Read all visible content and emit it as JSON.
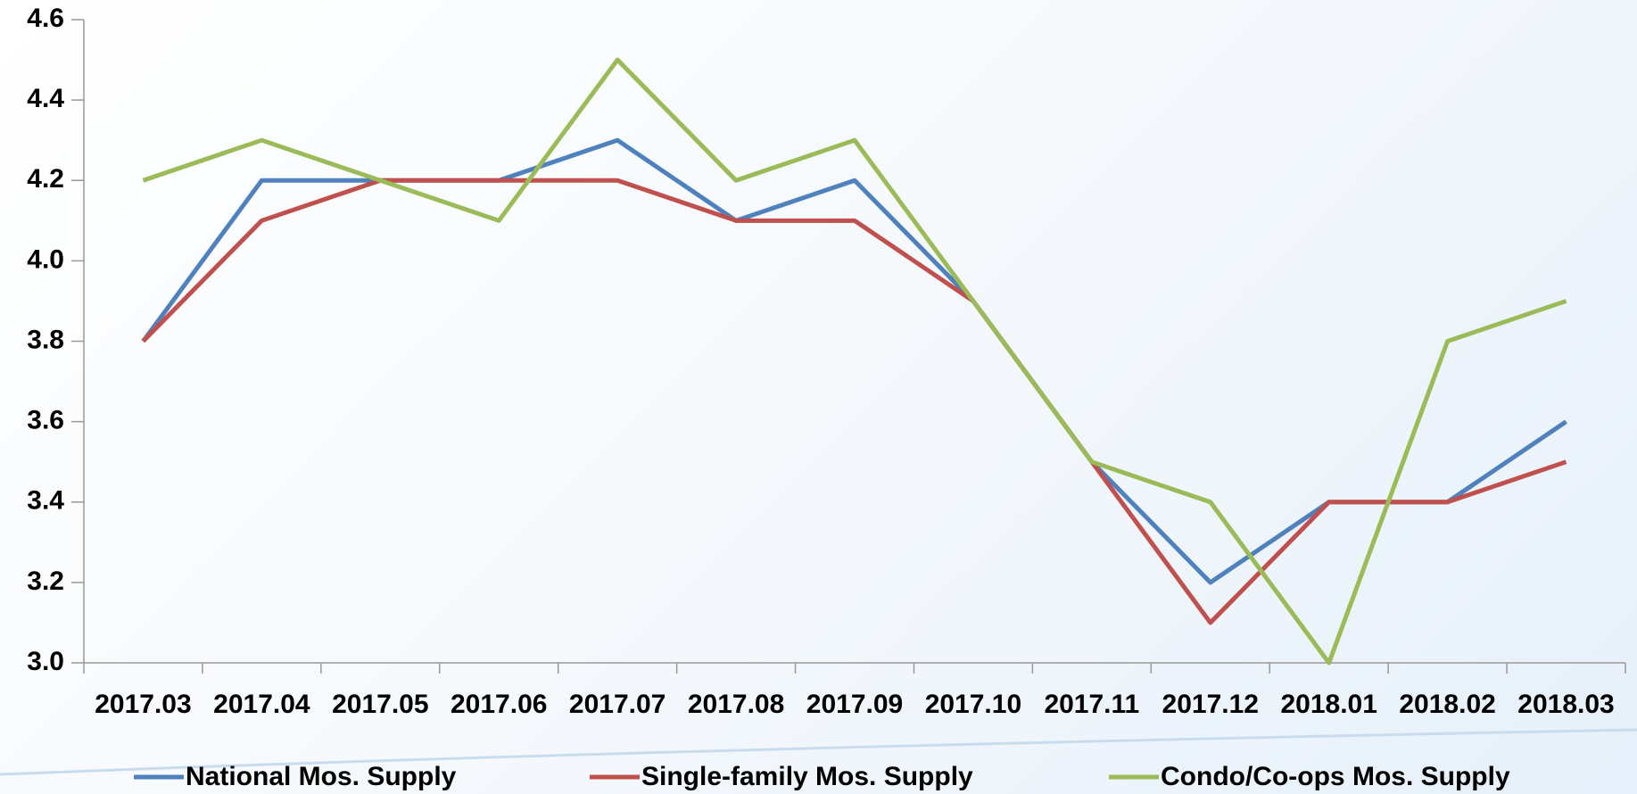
{
  "chart_data": {
    "type": "line",
    "categories": [
      "2017.03",
      "2017.04",
      "2017.05",
      "2017.06",
      "2017.07",
      "2017.08",
      "2017.09",
      "2017.10",
      "2017.11",
      "2017.12",
      "2018.01",
      "2018.02",
      "2018.03"
    ],
    "series": [
      {
        "name": "National Mos. Supply",
        "color": "#4f81bd",
        "values": [
          3.8,
          4.2,
          4.2,
          4.2,
          4.3,
          4.1,
          4.2,
          3.9,
          3.5,
          3.2,
          3.4,
          3.4,
          3.6
        ]
      },
      {
        "name": "Single-family Mos. Supply",
        "color": "#c0504d",
        "values": [
          3.8,
          4.1,
          4.2,
          4.2,
          4.2,
          4.1,
          4.1,
          3.9,
          3.5,
          3.1,
          3.4,
          3.4,
          3.5
        ]
      },
      {
        "name": "Condo/Co-ops Mos. Supply",
        "color": "#9bbb59",
        "values": [
          4.2,
          4.3,
          4.2,
          4.1,
          4.5,
          4.2,
          4.3,
          3.9,
          3.5,
          3.4,
          3.0,
          3.8,
          3.9
        ]
      }
    ],
    "ylim": [
      3,
      4.6
    ],
    "yticks": [
      {
        "value": 3,
        "label": "3.0"
      },
      3.2,
      3.4,
      3.6,
      3.8,
      {
        "value": 4,
        "label": "4.0"
      },
      4.2,
      4.4,
      4.6
    ],
    "grid": false,
    "legend": "bottom"
  }
}
